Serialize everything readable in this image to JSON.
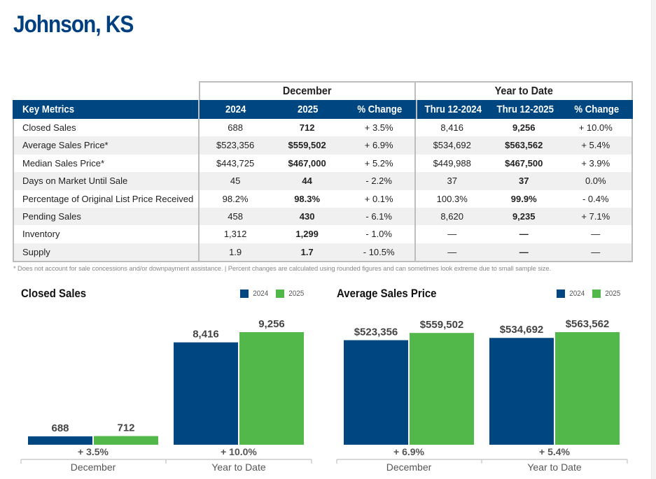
{
  "page": {
    "title": "Johnson, KS"
  },
  "colors": {
    "brand": "#004680",
    "series_2024": "#004680",
    "series_2025": "#52b84a",
    "header_text": "#ffffff"
  },
  "table": {
    "groups": [
      {
        "label": "December"
      },
      {
        "label": "Year to Date"
      }
    ],
    "headers": [
      "Key Metrics",
      "2024",
      "2025",
      "% Change",
      "Thru 12-2024",
      "Thru 12-2025",
      "% Change"
    ],
    "rows": [
      {
        "metric": "Closed Sales",
        "dec_2024": "688",
        "dec_2025": "712",
        "dec_change": "+ 3.5%",
        "ytd_2024": "8,416",
        "ytd_2025": "9,256",
        "ytd_change": "+ 10.0%"
      },
      {
        "metric": "Average Sales Price*",
        "dec_2024": "$523,356",
        "dec_2025": "$559,502",
        "dec_change": "+ 6.9%",
        "ytd_2024": "$534,692",
        "ytd_2025": "$563,562",
        "ytd_change": "+ 5.4%"
      },
      {
        "metric": "Median Sales Price*",
        "dec_2024": "$443,725",
        "dec_2025": "$467,000",
        "dec_change": "+ 5.2%",
        "ytd_2024": "$449,988",
        "ytd_2025": "$467,500",
        "ytd_change": "+ 3.9%"
      },
      {
        "metric": "Days on Market Until Sale",
        "dec_2024": "45",
        "dec_2025": "44",
        "dec_change": "- 2.2%",
        "ytd_2024": "37",
        "ytd_2025": "37",
        "ytd_change": "0.0%"
      },
      {
        "metric": "Percentage of Original List Price Received",
        "dec_2024": "98.2%",
        "dec_2025": "98.3%",
        "dec_change": "+ 0.1%",
        "ytd_2024": "100.3%",
        "ytd_2025": "99.9%",
        "ytd_change": "- 0.4%"
      },
      {
        "metric": "Pending Sales",
        "dec_2024": "458",
        "dec_2025": "430",
        "dec_change": "- 6.1%",
        "ytd_2024": "8,620",
        "ytd_2025": "9,235",
        "ytd_change": "+ 7.1%"
      },
      {
        "metric": "Inventory",
        "dec_2024": "1,312",
        "dec_2025": "1,299",
        "dec_change": "- 1.0%",
        "ytd_2024": "—",
        "ytd_2025": "—",
        "ytd_change": "—"
      },
      {
        "metric": "Supply",
        "dec_2024": "1.9",
        "dec_2025": "1.7",
        "dec_change": "- 10.5%",
        "ytd_2024": "—",
        "ytd_2025": "—",
        "ytd_change": "—"
      }
    ]
  },
  "footnote": "* Does not account for sale concessions and/or downpayment assistance. | Percent changes are calculated using rounded figures and can sometimes look extreme due to small sample size.",
  "chart_data": [
    {
      "type": "bar",
      "title": "Closed Sales",
      "categories": [
        "December",
        "Year to Date"
      ],
      "series": [
        {
          "name": "2024",
          "values": [
            688,
            8416
          ],
          "labels": [
            "688",
            "8,416"
          ]
        },
        {
          "name": "2025",
          "values": [
            712,
            9256
          ],
          "labels": [
            "712",
            "9,256"
          ]
        }
      ],
      "change_labels": [
        "+ 3.5%",
        "+ 10.0%"
      ],
      "legend": "top-right",
      "grid": false,
      "independent_scale_per_category": false,
      "ylim": [
        0,
        9256
      ]
    },
    {
      "type": "bar",
      "title": "Average Sales Price",
      "categories": [
        "December",
        "Year to Date"
      ],
      "series": [
        {
          "name": "2024",
          "values": [
            523356,
            534692
          ],
          "labels": [
            "$523,356",
            "$534,692"
          ]
        },
        {
          "name": "2025",
          "values": [
            559502,
            563562
          ],
          "labels": [
            "$559,502",
            "$563,562"
          ]
        }
      ],
      "change_labels": [
        "+ 6.9%",
        "+ 5.4%"
      ],
      "legend": "top-right",
      "grid": false,
      "ylim": [
        0,
        563562
      ]
    }
  ]
}
